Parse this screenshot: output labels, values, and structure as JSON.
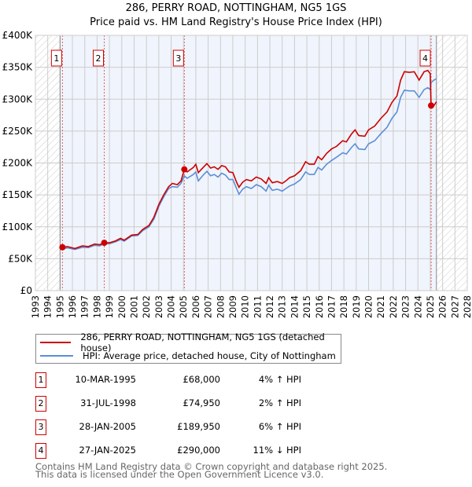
{
  "chart_data": {
    "type": "line",
    "title": "286, PERRY ROAD, NOTTINGHAM, NG5 1GS",
    "subtitle": "Price paid vs. HM Land Registry's House Price Index (HPI)",
    "xlim": [
      1993,
      2028
    ],
    "ylim": [
      0,
      400000
    ],
    "yticks": [
      {
        "v": 0,
        "label": "£0"
      },
      {
        "v": 50000,
        "label": "£50K"
      },
      {
        "v": 100000,
        "label": "£100K"
      },
      {
        "v": 150000,
        "label": "£150K"
      },
      {
        "v": 200000,
        "label": "£200K"
      },
      {
        "v": 250000,
        "label": "£250K"
      },
      {
        "v": 300000,
        "label": "£300K"
      },
      {
        "v": 350000,
        "label": "£350K"
      },
      {
        "v": 400000,
        "label": "£400K"
      }
    ],
    "xticks": [
      "1993",
      "1994",
      "1995",
      "1996",
      "1997",
      "1998",
      "1999",
      "2000",
      "2001",
      "2002",
      "2003",
      "2004",
      "2005",
      "2006",
      "2007",
      "2008",
      "2009",
      "2010",
      "2011",
      "2012",
      "2013",
      "2014",
      "2015",
      "2016",
      "2017",
      "2018",
      "2019",
      "2020",
      "2021",
      "2022",
      "2023",
      "2024",
      "2025",
      "2026",
      "2027",
      "2028"
    ],
    "grid": true,
    "shaded_range": [
      1995,
      2025.5
    ],
    "hatched_before": 1995,
    "hatched_after": 2025.5,
    "series": [
      {
        "name": "286, PERRY ROAD, NOTTINGHAM, NG5 1GS (detached house)",
        "color": "#cc0000",
        "x": [
          1995.19,
          1995.6,
          1996.2,
          1996.8,
          1997.3,
          1997.8,
          1998.2,
          1998.58,
          1999,
          1999.5,
          1999.9,
          2000.2,
          2000.8,
          2001.3,
          2001.7,
          2002.2,
          2002.6,
          2003,
          2003.4,
          2003.8,
          2004.1,
          2004.5,
          2004.8,
          2005.07,
          2005.3,
          2005.8,
          2006,
          2006.2,
          2006.6,
          2006.9,
          2007.2,
          2007.5,
          2007.8,
          2008.1,
          2008.4,
          2008.7,
          2009,
          2009.3,
          2009.5,
          2009.8,
          2010.1,
          2010.5,
          2010.9,
          2011.3,
          2011.7,
          2011.9,
          2012.2,
          2012.6,
          2013,
          2013.3,
          2013.6,
          2014,
          2014.5,
          2014.9,
          2015.2,
          2015.6,
          2015.9,
          2016.2,
          2016.6,
          2017,
          2017.4,
          2017.9,
          2018.2,
          2018.6,
          2018.9,
          2019.2,
          2019.7,
          2020,
          2020.5,
          2021,
          2021.5,
          2021.9,
          2022.3,
          2022.6,
          2022.9,
          2023.3,
          2023.7,
          2024.1,
          2024.5,
          2024.8,
          2025.0,
          2025.07,
          2025.3,
          2025.5
        ],
        "y": [
          68000,
          69000,
          66000,
          70000,
          69000,
          73000,
          72000,
          74950,
          75000,
          78000,
          82000,
          79000,
          87000,
          88000,
          96000,
          102000,
          115000,
          135000,
          150000,
          163000,
          168000,
          166000,
          172000,
          189950,
          186000,
          193000,
          198000,
          185000,
          193000,
          199000,
          192000,
          194000,
          190000,
          196000,
          194000,
          186000,
          185000,
          170000,
          162000,
          170000,
          174000,
          172000,
          178000,
          175000,
          168000,
          177000,
          169000,
          171000,
          168000,
          172000,
          177000,
          180000,
          188000,
          202000,
          198000,
          198000,
          210000,
          205000,
          215000,
          222000,
          226000,
          235000,
          233000,
          245000,
          252000,
          243000,
          242000,
          252000,
          258000,
          270000,
          280000,
          295000,
          305000,
          330000,
          343000,
          342000,
          343000,
          330000,
          343000,
          345000,
          340000,
          290000,
          290000,
          296000
        ]
      },
      {
        "name": "HPI: Average price, detached house, City of Nottingham",
        "color": "#5b8fd6",
        "x": [
          1995.19,
          1995.6,
          1996.2,
          1996.8,
          1997.3,
          1997.8,
          1998.2,
          1998.58,
          1999,
          1999.5,
          1999.9,
          2000.2,
          2000.8,
          2001.3,
          2001.7,
          2002.2,
          2002.6,
          2003,
          2003.4,
          2003.8,
          2004.1,
          2004.5,
          2004.8,
          2005.07,
          2005.3,
          2005.8,
          2006,
          2006.2,
          2006.6,
          2006.9,
          2007.2,
          2007.5,
          2007.8,
          2008.1,
          2008.4,
          2008.7,
          2009,
          2009.3,
          2009.5,
          2009.8,
          2010.1,
          2010.5,
          2010.9,
          2011.3,
          2011.7,
          2011.9,
          2012.2,
          2012.6,
          2013,
          2013.3,
          2013.6,
          2014,
          2014.5,
          2014.9,
          2015.2,
          2015.6,
          2015.9,
          2016.2,
          2016.6,
          2017,
          2017.4,
          2017.9,
          2018.2,
          2018.6,
          2018.9,
          2019.2,
          2019.7,
          2020,
          2020.5,
          2021,
          2021.5,
          2021.9,
          2022.3,
          2022.6,
          2022.9,
          2023.3,
          2023.7,
          2024.1,
          2024.5,
          2024.8,
          2025.0,
          2025.07,
          2025.3,
          2025.5
        ],
        "y": [
          65500,
          67000,
          64500,
          68000,
          67500,
          71000,
          70000,
          73500,
          73500,
          76500,
          80000,
          77500,
          85500,
          86500,
          94000,
          100000,
          112000,
          132000,
          147000,
          160000,
          163000,
          162000,
          168000,
          180000,
          176000,
          182000,
          186000,
          172000,
          181000,
          187000,
          180000,
          182000,
          178000,
          184000,
          181000,
          174000,
          174000,
          160000,
          151000,
          159000,
          163000,
          160000,
          166000,
          163000,
          156000,
          165000,
          157000,
          159000,
          156000,
          160000,
          164000,
          167000,
          174000,
          186000,
          182000,
          182000,
          193000,
          189000,
          198000,
          204000,
          209000,
          216000,
          214000,
          224000,
          230000,
          222000,
          221000,
          230000,
          235000,
          246000,
          256000,
          270000,
          280000,
          303000,
          314000,
          313000,
          313000,
          303000,
          315000,
          318000,
          315000,
          326000,
          330000,
          332000
        ]
      }
    ],
    "sales": [
      {
        "label": "1",
        "x": 1995.19,
        "y": 68000
      },
      {
        "label": "2",
        "x": 1998.58,
        "y": 74950
      },
      {
        "label": "3",
        "x": 2005.07,
        "y": 189950
      },
      {
        "label": "4",
        "x": 2025.07,
        "y": 290000
      }
    ]
  },
  "legend": {
    "property": "286, PERRY ROAD, NOTTINGHAM, NG5 1GS (detached house)",
    "hpi": "HPI: Average price, detached house, City of Nottingham"
  },
  "transactions": [
    {
      "num": "1",
      "date": "10-MAR-1995",
      "price": "£68,000",
      "hpi": "4% ↑ HPI"
    },
    {
      "num": "2",
      "date": "31-JUL-1998",
      "price": "£74,950",
      "hpi": "2% ↑ HPI"
    },
    {
      "num": "3",
      "date": "28-JAN-2005",
      "price": "£189,950",
      "hpi": "6% ↑ HPI"
    },
    {
      "num": "4",
      "date": "27-JAN-2025",
      "price": "£290,000",
      "hpi": "11% ↓ HPI"
    }
  ],
  "footer": {
    "line1": "Contains HM Land Registry data © Crown copyright and database right 2025.",
    "line2": "This data is licensed under the Open Government Licence v3.0."
  }
}
